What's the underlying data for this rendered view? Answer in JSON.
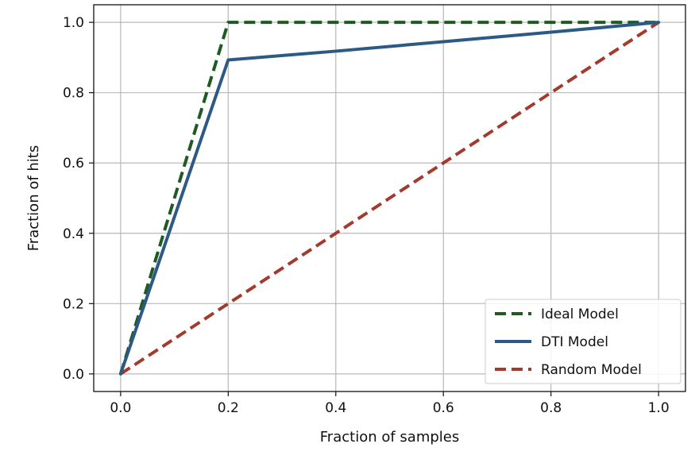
{
  "chart_data": {
    "type": "line",
    "xlabel": "Fraction of samples",
    "ylabel": "Fraction of hits",
    "xlim": [
      -0.05,
      1.05
    ],
    "ylim": [
      -0.05,
      1.05
    ],
    "xticks": [
      "0.0",
      "0.2",
      "0.4",
      "0.6",
      "0.8",
      "1.0"
    ],
    "yticks": [
      "0.0",
      "0.2",
      "0.4",
      "0.6",
      "0.8",
      "1.0"
    ],
    "grid": true,
    "legend_position": "bottom-right",
    "series": [
      {
        "name": "Ideal Model",
        "style": "dashed",
        "color": "#1f5a23",
        "x": [
          0.0,
          0.2,
          1.0
        ],
        "y": [
          0.0,
          1.0,
          1.0
        ]
      },
      {
        "name": "DTI Model",
        "style": "solid",
        "color": "#2c5a85",
        "x": [
          0.0,
          0.2,
          0.4,
          0.6,
          0.8,
          1.0
        ],
        "y": [
          0.0,
          0.893,
          0.918,
          0.945,
          0.972,
          1.0
        ]
      },
      {
        "name": "Random Model",
        "style": "dashed",
        "color": "#a33a2e",
        "x": [
          0.0,
          1.0
        ],
        "y": [
          0.0,
          1.0
        ]
      }
    ]
  }
}
